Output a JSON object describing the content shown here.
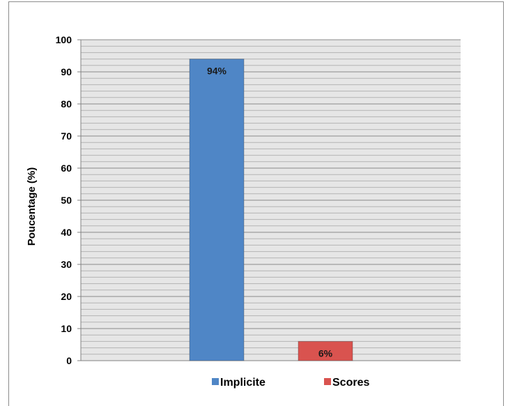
{
  "chart_data": {
    "type": "bar",
    "title": "",
    "xlabel": "",
    "ylabel": "Poucentage (%)",
    "ylim": [
      0,
      100
    ],
    "yticks": [
      0,
      10,
      20,
      30,
      40,
      50,
      60,
      70,
      80,
      90,
      100
    ],
    "grid": "horizontal, minor every 2 units",
    "legend_position": "bottom",
    "series": [
      {
        "name": "Implicite",
        "value": 94,
        "label": "94%",
        "color": "#4f86c6"
      },
      {
        "name": "Scores",
        "value": 6,
        "label": "6%",
        "color": "#d9534f"
      }
    ]
  }
}
